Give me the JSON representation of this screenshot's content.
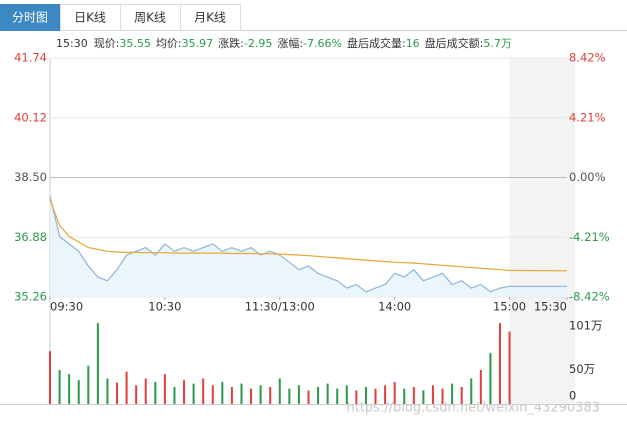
{
  "tabs": [
    "分时图",
    "日K线",
    "周K线",
    "月K线"
  ],
  "info": {
    "time": "15:30",
    "items": [
      {
        "label": "现价:",
        "value": "35.55"
      },
      {
        "label": "均价:",
        "value": "35.97"
      },
      {
        "label": "涨跌:",
        "value": "-2.95"
      },
      {
        "label": "涨幅:",
        "value": "-7.66%"
      },
      {
        "label": "盘后成交量:",
        "value": "16"
      },
      {
        "label": "盘后成交额:",
        "value": "5.7万"
      }
    ]
  },
  "watermark": "https://blog.csdn.net/weixin_43290383",
  "chart_data": [
    {
      "type": "line",
      "x": [
        0,
        5,
        10,
        15,
        20,
        25,
        30,
        35,
        40,
        45,
        50,
        55,
        60,
        65,
        70,
        75,
        80,
        85,
        90,
        95,
        100,
        105,
        110,
        115,
        120,
        125,
        130,
        135,
        140,
        145,
        150,
        155,
        160,
        165,
        170,
        175,
        180,
        185,
        190,
        195,
        200,
        205,
        210,
        215,
        220,
        225,
        230,
        235,
        240,
        270
      ],
      "xlim": [
        0,
        270
      ],
      "xticks": [
        {
          "value": 0,
          "label": "09:30"
        },
        {
          "value": 60,
          "label": "10:30"
        },
        {
          "value": 120,
          "label": "11:30/13:00"
        },
        {
          "value": 180,
          "label": "14:00"
        },
        {
          "value": 240,
          "label": "15:00"
        },
        {
          "value": 270,
          "label": "15:30"
        }
      ],
      "ylim": [
        35.26,
        41.74
      ],
      "yticks": [
        35.26,
        36.88,
        {
          "value": 38.5,
          "label": "38.50"
        },
        40.12,
        41.74
      ],
      "y2lim": [
        -8.42,
        8.42
      ],
      "y2ticks": [
        {
          "value": -8.42,
          "label": "-8.42%"
        },
        {
          "value": -4.21,
          "label": "-4.21%"
        },
        {
          "value": 0,
          "label": "0.00%"
        },
        {
          "value": 4.21,
          "label": "4.21%"
        },
        {
          "value": 8.42,
          "label": "8.42%"
        }
      ],
      "grid": true,
      "series": [
        {
          "name": "现价",
          "color": "#8fb4dc",
          "values": [
            38.0,
            36.9,
            36.7,
            36.5,
            36.1,
            35.8,
            35.7,
            36.0,
            36.4,
            36.5,
            36.6,
            36.4,
            36.7,
            36.5,
            36.6,
            36.5,
            36.6,
            36.7,
            36.5,
            36.6,
            36.5,
            36.6,
            36.4,
            36.5,
            36.4,
            36.2,
            36.0,
            36.1,
            35.9,
            35.8,
            35.7,
            35.5,
            35.6,
            35.4,
            35.5,
            35.6,
            35.9,
            35.8,
            36.0,
            35.7,
            35.8,
            35.9,
            35.6,
            35.7,
            35.5,
            35.6,
            35.4,
            35.5,
            35.55,
            35.55
          ]
        },
        {
          "name": "均价",
          "color": "#e8a735",
          "values": [
            37.9,
            37.2,
            36.9,
            36.75,
            36.6,
            36.55,
            36.5,
            36.48,
            36.47,
            36.47,
            36.46,
            36.46,
            36.46,
            36.45,
            36.45,
            36.45,
            36.45,
            36.45,
            36.45,
            36.44,
            36.44,
            36.44,
            36.43,
            36.43,
            36.42,
            36.41,
            36.4,
            36.38,
            36.36,
            36.34,
            36.32,
            36.3,
            36.28,
            36.26,
            36.24,
            36.22,
            36.2,
            36.19,
            36.18,
            36.16,
            36.14,
            36.12,
            36.1,
            36.08,
            36.06,
            36.04,
            36.02,
            36.0,
            35.98,
            35.97
          ]
        }
      ]
    },
    {
      "type": "bar",
      "values": [
        62,
        40,
        35,
        28,
        45,
        95,
        30,
        25,
        38,
        22,
        30,
        26,
        35,
        20,
        28,
        24,
        30,
        22,
        26,
        20,
        24,
        18,
        22,
        20,
        30,
        18,
        22,
        16,
        20,
        24,
        18,
        22,
        16,
        20,
        18,
        22,
        26,
        18,
        20,
        16,
        22,
        18,
        24,
        20,
        30,
        40,
        60,
        95,
        85,
        0
      ],
      "ylim": [
        0,
        101
      ],
      "yticks": [
        0,
        {
          "value": 50,
          "label": "50万"
        },
        {
          "value": 101,
          "label": "101万"
        }
      ],
      "colors": {
        "up": "#e0403a",
        "down": "#2a9a4a"
      }
    }
  ]
}
